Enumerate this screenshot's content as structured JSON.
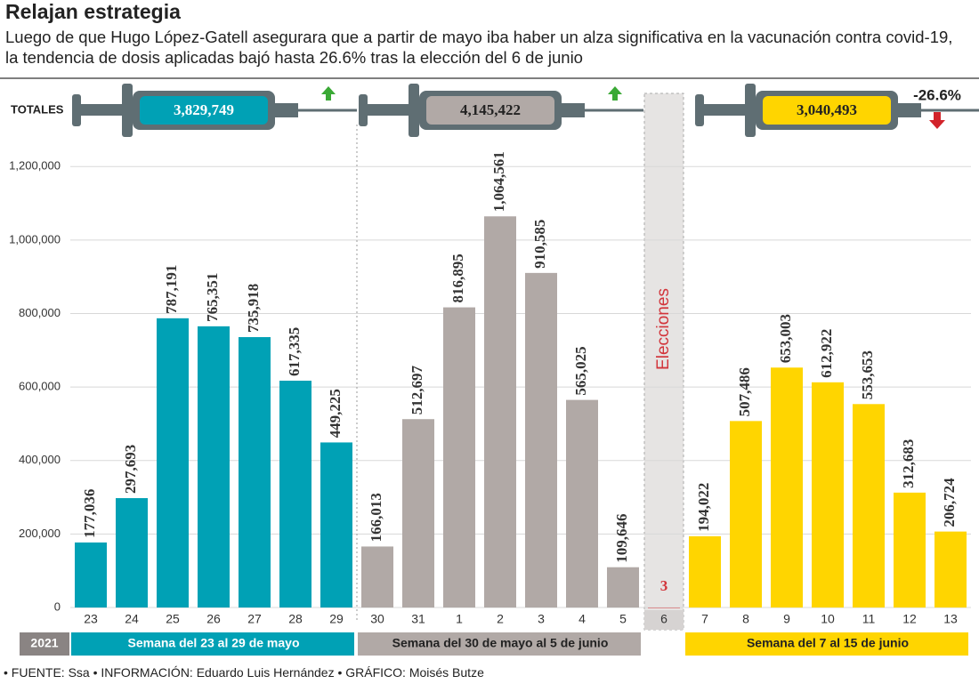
{
  "chart_data": {
    "type": "bar",
    "title": "Relajan estrategia",
    "subtitle": "Luego de que Hugo López-Gatell asegurara que a partir de mayo iba haber un alza significativa en la vacunación contra covid-19, la tendencia de dosis aplicadas bajó hasta 26.6% tras la elección del 6 de junio",
    "totals_label": "TOTALES",
    "year_label": "2021",
    "source": "• FUENTE: Ssa • INFORMACIÓN: Eduardo Luis Hernández • GRÁFICO: Moisés Butze",
    "categories": [
      "23",
      "24",
      "25",
      "26",
      "27",
      "28",
      "29",
      "30",
      "31",
      "1",
      "2",
      "3",
      "4",
      "5",
      "6",
      "7",
      "8",
      "9",
      "10",
      "11",
      "12",
      "13"
    ],
    "ylim": [
      0,
      1300000
    ],
    "yticks": [
      0,
      {
        "value": 200000,
        "label": "200,000"
      },
      {
        "value": 400000,
        "label": "400,000"
      },
      {
        "value": 600000,
        "label": "600,000"
      },
      {
        "value": 800000,
        "label": "800,000"
      },
      {
        "value": 1000000,
        "label": "1,000,000"
      },
      {
        "value": 1200000,
        "label": "1,200,000"
      }
    ],
    "grid": true,
    "series": [
      {
        "name": "Semana del 23 al 29 de mayo",
        "color": "#00a1b5",
        "total": 3829749,
        "total_label": "3,829,749",
        "trend": "up",
        "values": [
          177036,
          297693,
          787191,
          765351,
          735918,
          617335,
          449225,
          null,
          null,
          null,
          null,
          null,
          null,
          null,
          null,
          null,
          null,
          null,
          null,
          null,
          null,
          null
        ],
        "value_labels": [
          "177,036",
          "297,693",
          "787,191",
          "765,351",
          "735,918",
          "617,335",
          "449,225",
          null,
          null,
          null,
          null,
          null,
          null,
          null,
          null,
          null,
          null,
          null,
          null,
          null,
          null,
          null
        ]
      },
      {
        "name": "Semana del 30 de mayo al 5 de junio",
        "color": "#b1a9a6",
        "total": 4145422,
        "total_label": "4,145,422",
        "trend": "up",
        "values": [
          null,
          null,
          null,
          null,
          null,
          null,
          null,
          166013,
          512697,
          816895,
          1064561,
          910585,
          565025,
          109646,
          null,
          null,
          null,
          null,
          null,
          null,
          null,
          null
        ],
        "value_labels": [
          null,
          null,
          null,
          null,
          null,
          null,
          null,
          "166,013",
          "512,697",
          "816,895",
          "1,064,561",
          "910,585",
          "565,025",
          "109,646",
          null,
          null,
          null,
          null,
          null,
          null,
          null,
          null
        ]
      },
      {
        "name": "Elecciones",
        "color": "#d2343a",
        "values": [
          null,
          null,
          null,
          null,
          null,
          null,
          null,
          null,
          null,
          null,
          null,
          null,
          null,
          null,
          3,
          null,
          null,
          null,
          null,
          null,
          null,
          null
        ]
      },
      {
        "name": "Semana del 7 al 15 de junio",
        "color": "#ffd500",
        "total": 3040493,
        "total_label": "3,040,493",
        "trend": "down",
        "change": -26.6,
        "change_label": "-26.6%",
        "values": [
          null,
          null,
          null,
          null,
          null,
          null,
          null,
          null,
          null,
          null,
          null,
          null,
          null,
          null,
          null,
          194022,
          507486,
          653003,
          612922,
          553653,
          312683,
          206724
        ],
        "value_labels": [
          null,
          null,
          null,
          null,
          null,
          null,
          null,
          null,
          null,
          null,
          null,
          null,
          null,
          null,
          null,
          "194,022",
          "507,486",
          "653,003",
          "612,922",
          "553,653",
          "312,683",
          "206,724"
        ]
      }
    ]
  }
}
